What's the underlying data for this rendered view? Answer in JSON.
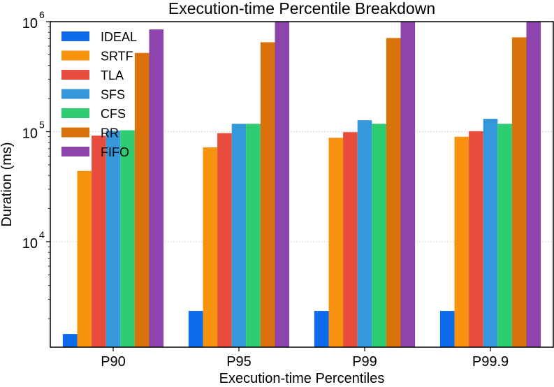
{
  "chart_data": {
    "type": "bar",
    "title": "Execution-time Percentile Breakdown",
    "xlabel": "Execution-time Percentiles",
    "ylabel": "Duration (ms)",
    "yscale": "log",
    "ylim": [
      1100,
      1000000
    ],
    "categories": [
      "P90",
      "P95",
      "P99",
      "P99.9"
    ],
    "yticks": [
      {
        "value": 10000,
        "base": "10",
        "exp": "4"
      },
      {
        "value": 100000,
        "base": "10",
        "exp": "5"
      },
      {
        "value": 1000000,
        "base": "10",
        "exp": "6"
      }
    ],
    "grid": "horizontal dotted at major ticks",
    "legend": "top-left",
    "series": [
      {
        "name": "IDEAL",
        "color": "#0b6bea",
        "values": [
          1450,
          2350,
          2350,
          2350
        ]
      },
      {
        "name": "SRTF",
        "color": "#f7920f",
        "values": [
          44000,
          72000,
          88000,
          90000
        ]
      },
      {
        "name": "TLA",
        "color": "#e74c3c",
        "values": [
          92000,
          97000,
          99000,
          101000
        ]
      },
      {
        "name": "SFS",
        "color": "#3498db",
        "values": [
          102000,
          118000,
          127000,
          131000
        ]
      },
      {
        "name": "CFS",
        "color": "#2ecc71",
        "values": [
          103000,
          118000,
          118000,
          118000
        ]
      },
      {
        "name": "RR",
        "color": "#d9720a",
        "values": [
          520000,
          650000,
          710000,
          720000
        ]
      },
      {
        "name": "FIFO",
        "color": "#8e44ad",
        "values": [
          850000,
          1000000,
          1000000,
          1000000
        ]
      }
    ]
  }
}
